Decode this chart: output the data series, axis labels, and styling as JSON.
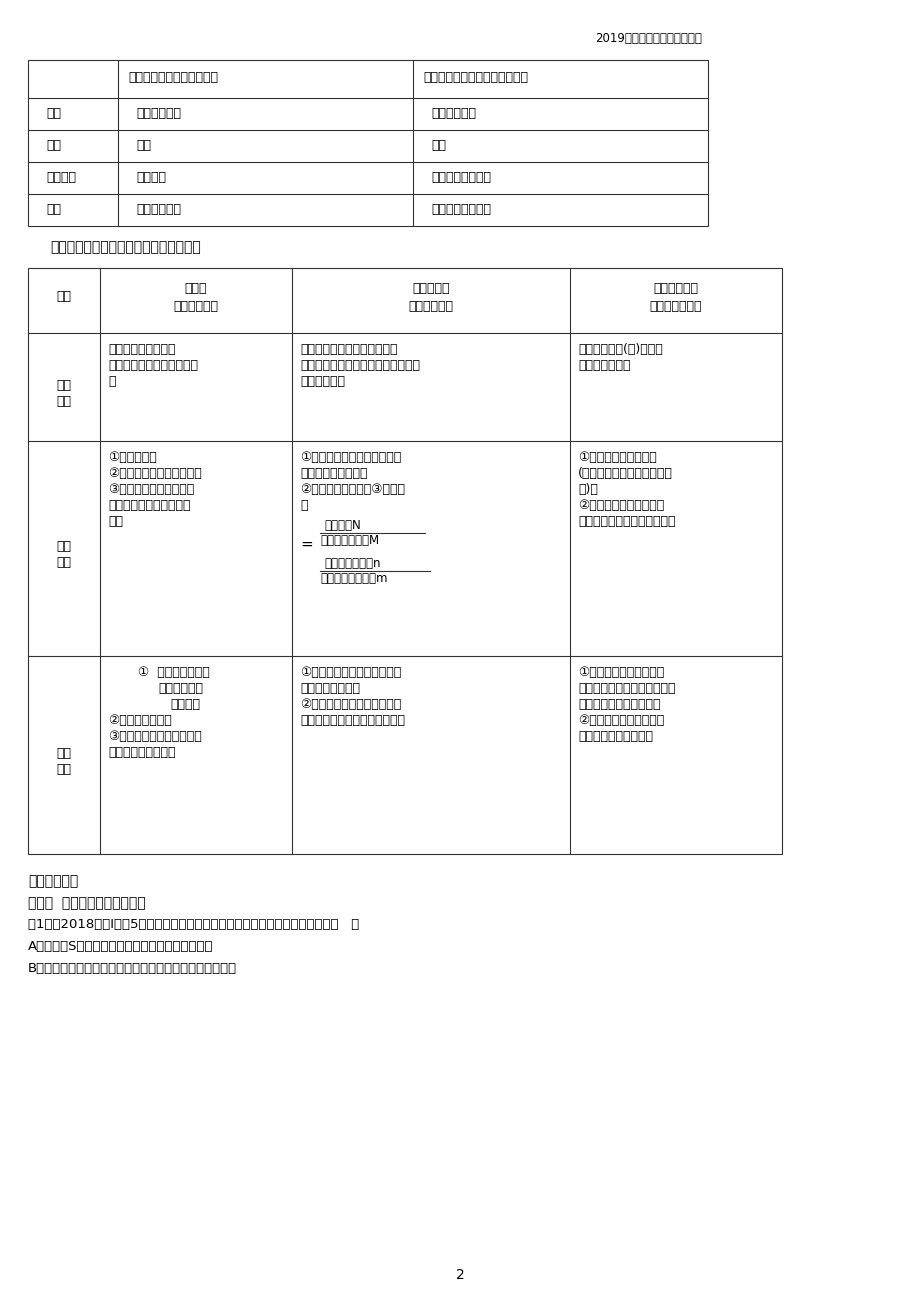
{
  "bg_color": "#ffffff",
  "header_text": "2019年高考考纲解读专题解析",
  "section_title_1": "三、种群密度的调查与群落丰富度的调查",
  "topic_example_header": "【题型示例】",
  "topic_type": "题型一  种群的特征与数量变化",
  "example_1": "例1．（2018全国Ⅰ卷，5）种群密度是种群的数量特征之一，下列叙述错误的是（   ）",
  "option_A": "A．种群的S型增长是受资源因素限制而呈现的结果",
  "option_B": "B．某林场中繁殖力极强老鼠种群数量的增长会受密度制约",
  "page_num": "2",
  "t1_headers": [
    "",
    "有过但被彻底消灭了的环境",
    "条件及植物的种子或其他繁殖体"
  ],
  "t1_rows": [
    [
      "时间",
      "经历的时间长",
      "经历的时间短"
    ],
    [
      "速率",
      "缓慢",
      "较快"
    ],
    [
      "影响因素",
      "自然因素",
      "人类活动较为关键"
    ],
    [
      "实例",
      "裸岩上的演替",
      "弃耕农田上的演替"
    ]
  ],
  "t2_col0": "项目",
  "t2_col1_h1": "样方法",
  "t2_col1_h2": "（种群密度）",
  "t2_col2_h1": "标志重捕法",
  "t2_col2_h2": "（种群密度）",
  "t2_col3_h1": "取样器取样法",
  "t2_col3_h2": "（群落丰富度）",
  "r1_label1": "适用",
  "r1_label2": "范围",
  "r1c1_lines": [
    "植物或固着生活或活",
    "动范围小、活动能力弱的动",
    "物"
  ],
  "r1c2_lines": [
    "活动能力强和范围大的动物，",
    "如哺乳类、鸟类、爬行类、两栖类、",
    "鱼类和昆虫等"
  ],
  "r1c3_lines": [
    "土壤或培养基(液)中的微",
    "小动物或微生物"
  ],
  "r2_label1": "方法",
  "r2_label2": "步骤",
  "r2c1_lines": [
    "①随机取样；",
    "②计数每个样方的个体数；",
    "③求解所有样方种群密度",
    "的平均值即该种群的种群",
    "密度"
  ],
  "r2c2_lines1": [
    "①在被调查范围内捕获一些个",
    "体并做标记后放回；",
    "②一段时间后重捕；③公式计",
    "算"
  ],
  "r2c2_fml_n": "个体总数N",
  "r2c2_fml_m": "初次捕获标志数M",
  "r2c2_eq": "=",
  "r2c2_fml_n2": "再次捕获个体数n",
  "r2c2_fml_m2": "重捕的标志个体数m",
  "r2c3_lines": [
    "①用一定规格的捕捉器",
    "(如采集罐、吸虫器等进行取",
    "样)；",
    "②在实验室借助放大镜、",
    "实体镜或显微镜进行观察计数"
  ],
  "r3_label1": "注意",
  "r3_label2": "事项",
  "r3c1_lines": [
    "①  在种群分布比较",
    "均匀的地块选",
    "取样方；",
    "②必须随机取样；",
    "③样方内、样方相邻两边及",
    "其顶角的个体均计入"
  ],
  "r3c1_indents": [
    30,
    50,
    62,
    0,
    0,
    0
  ],
  "r3c2_lines": [
    "①调查期内没有出生和死亡，",
    "没有迁入和迁出；",
    "②标志不能过分醒目，标志物",
    "和标志方法必须对动物没有伤害"
  ],
  "r3c3_lines": [
    "①小动物类群丰富度的研",
    "究包括取样、观察和分类、统",
    "计和分析三个操作环节；",
    "②丰富度的统计方法：记",
    "名计算法和目测估计法"
  ]
}
